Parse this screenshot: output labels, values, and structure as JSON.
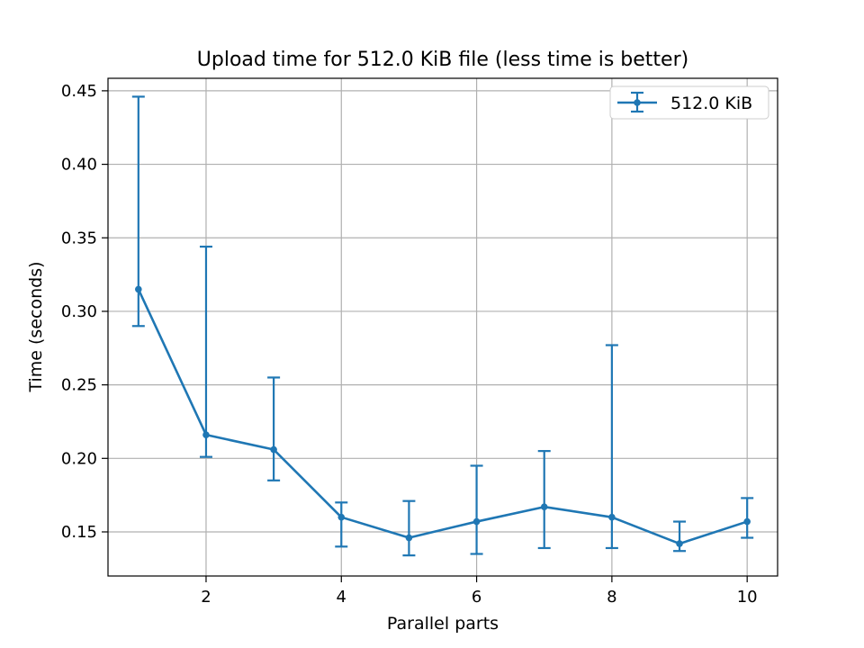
{
  "chart_data": {
    "type": "line",
    "title": "Upload time for 512.0 KiB file (less time is better)",
    "xlabel": "Parallel parts",
    "ylabel": "Time (seconds)",
    "xlim": [
      0.55,
      10.45
    ],
    "ylim": [
      0.12,
      0.4585
    ],
    "grid": true,
    "legend_position": "top-right",
    "x_ticks": [
      2,
      4,
      6,
      8,
      10
    ],
    "x_tick_labels": [
      "2",
      "4",
      "6",
      "8",
      "10"
    ],
    "y_ticks": [
      0.15,
      0.2,
      0.25,
      0.3,
      0.35,
      0.4,
      0.45
    ],
    "y_tick_labels": [
      "0.15",
      "0.20",
      "0.25",
      "0.30",
      "0.35",
      "0.40",
      "0.45"
    ],
    "series": [
      {
        "name": "512.0 KiB",
        "color": "#1f77b4",
        "x": [
          1,
          2,
          3,
          4,
          5,
          6,
          7,
          8,
          9,
          10
        ],
        "y": [
          0.315,
          0.216,
          0.206,
          0.16,
          0.146,
          0.157,
          0.167,
          0.16,
          0.142,
          0.157
        ],
        "err_low": [
          0.29,
          0.201,
          0.185,
          0.14,
          0.134,
          0.135,
          0.139,
          0.139,
          0.137,
          0.146
        ],
        "err_high": [
          0.446,
          0.344,
          0.255,
          0.17,
          0.171,
          0.195,
          0.205,
          0.277,
          0.157,
          0.173
        ]
      }
    ]
  }
}
